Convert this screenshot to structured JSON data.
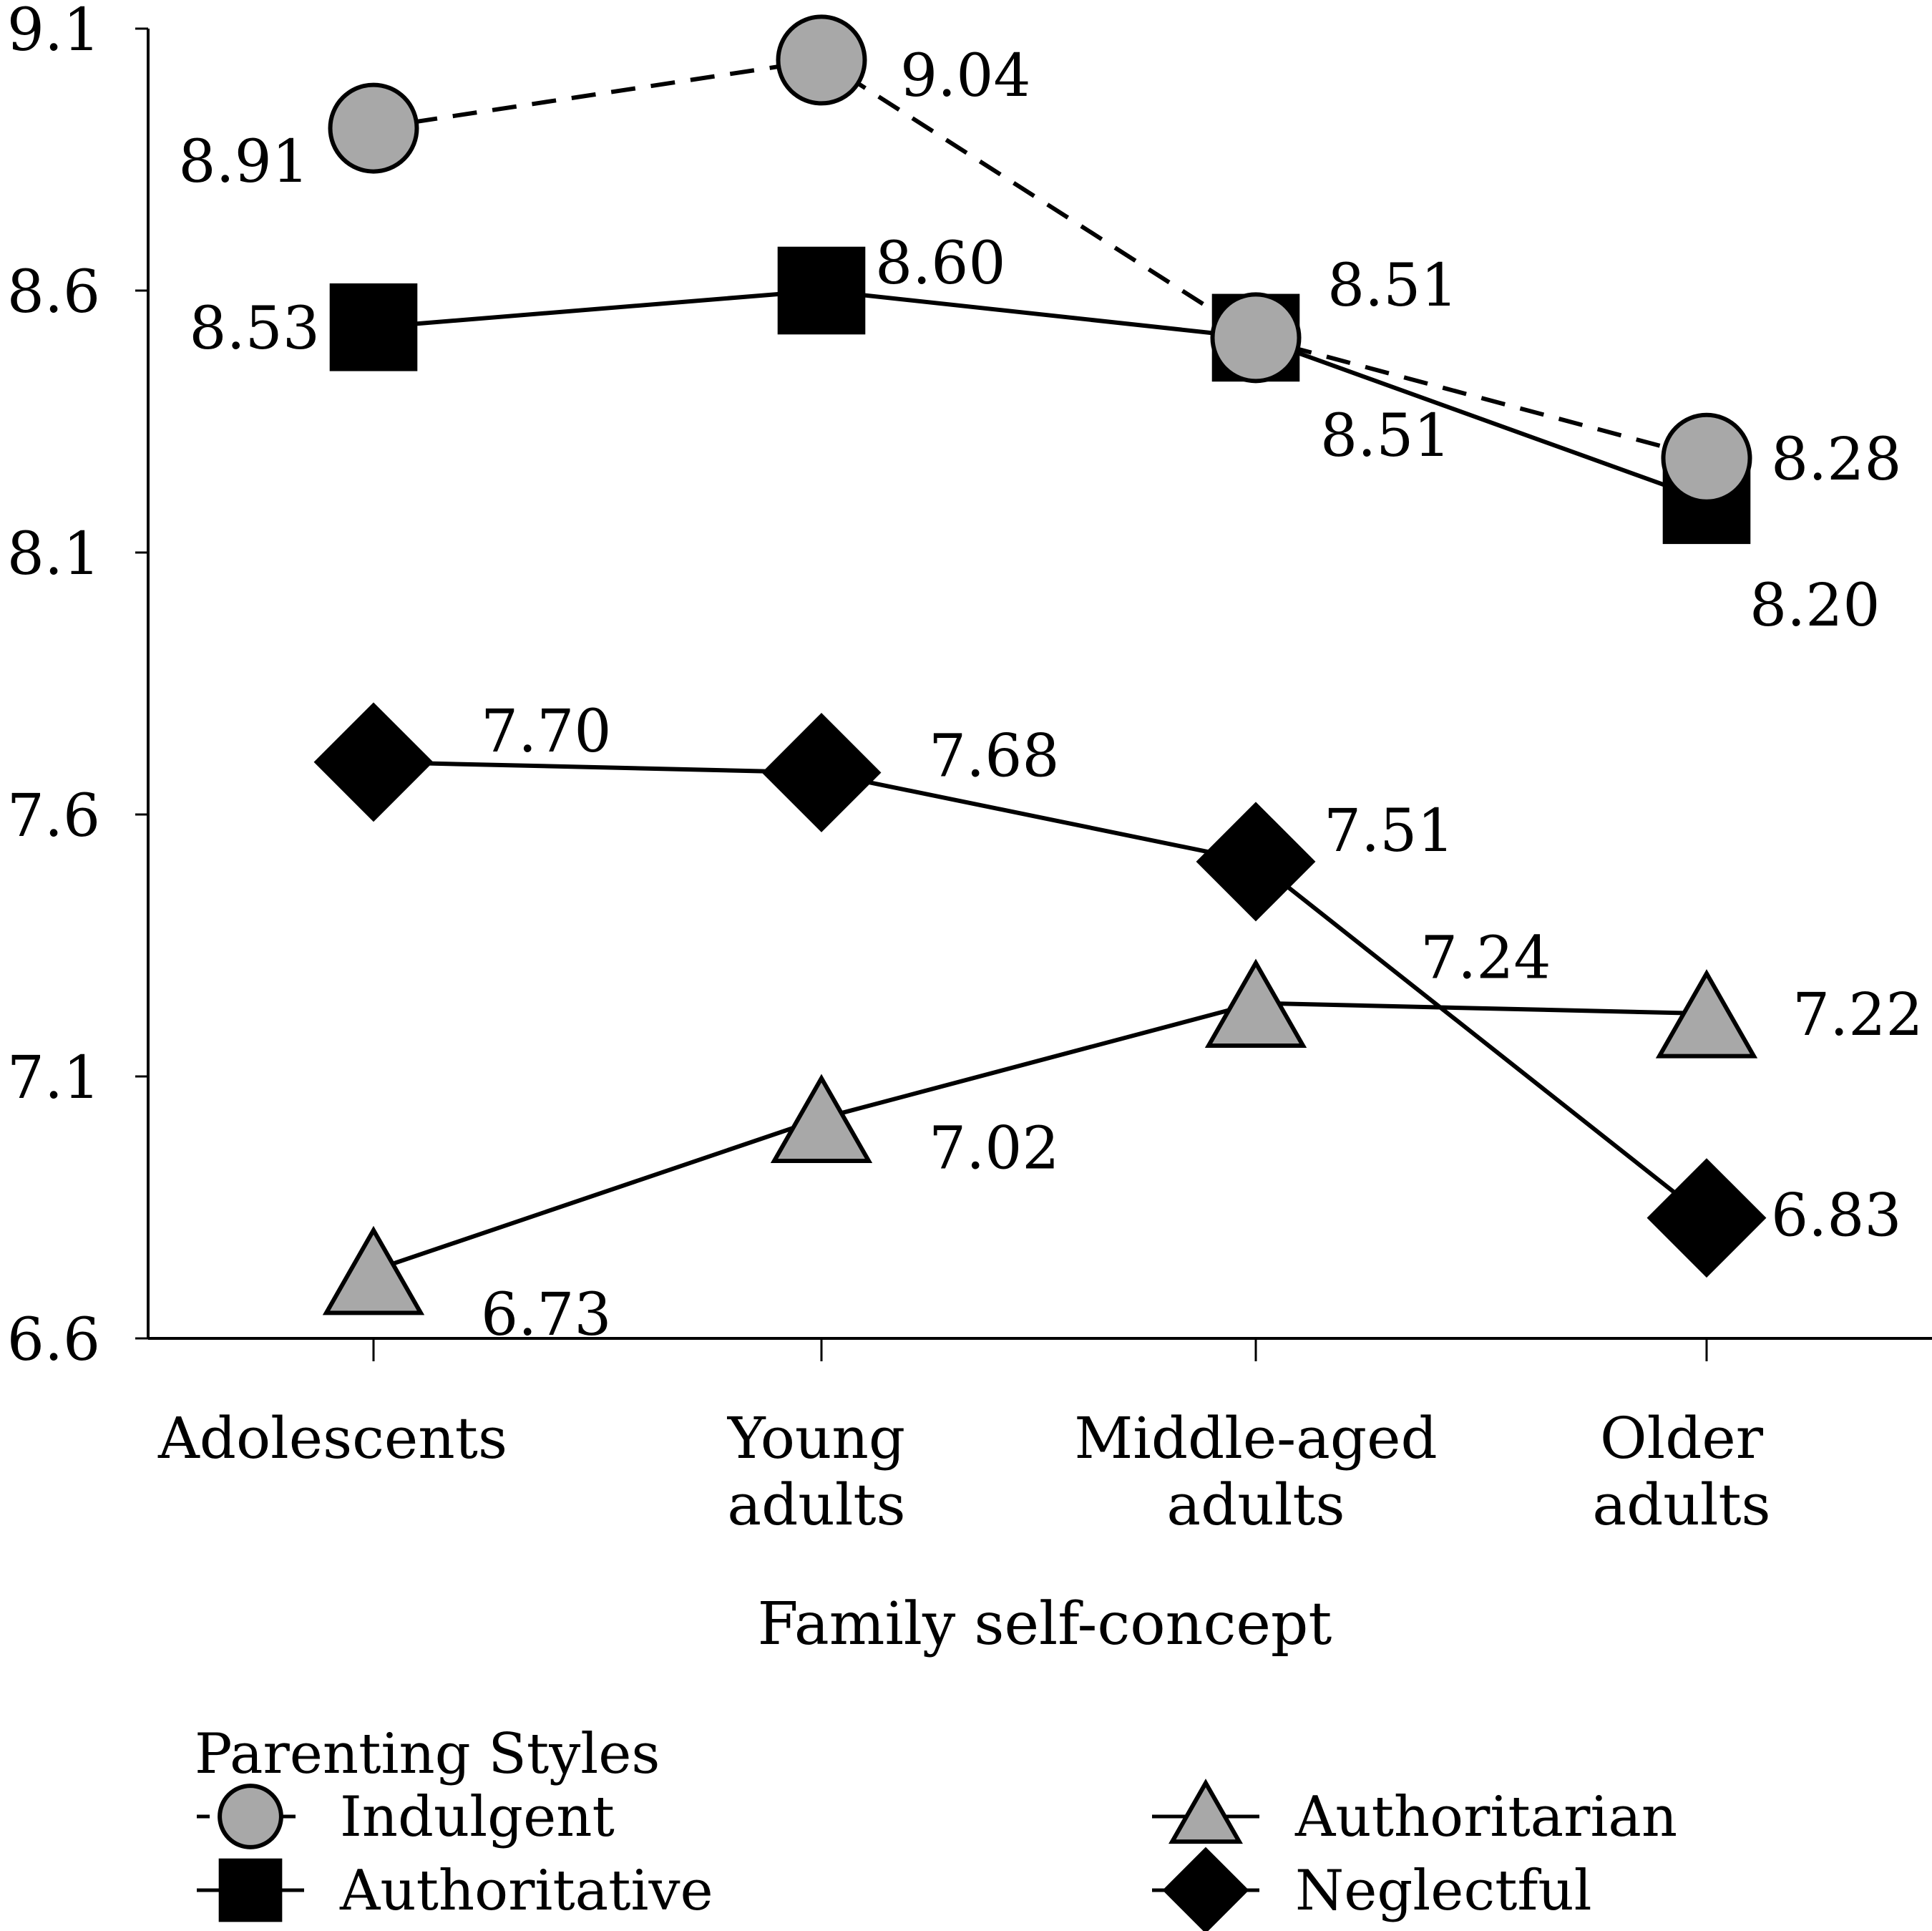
{
  "chart_data": {
    "type": "line",
    "xlabel": "Family self-concept",
    "ylabel": "",
    "ylim": [
      6.6,
      9.1
    ],
    "yticks": [
      "9.1",
      "8.6",
      "8.1",
      "7.6",
      "7.1",
      "6.6"
    ],
    "categories": [
      [
        "Adolescents"
      ],
      [
        "Young",
        "adults"
      ],
      [
        "Middle-aged",
        "adults"
      ],
      [
        "Older",
        "adults"
      ]
    ],
    "legend": {
      "title": "Parenting Styles",
      "placement": "bottom"
    },
    "series": [
      {
        "name": "Indulgent",
        "marker": "circle",
        "line": "dashed",
        "fill": "#a8a8a8",
        "values": [
          8.91,
          9.04,
          8.51,
          8.28
        ],
        "labels": [
          "8.91",
          "9.04",
          "8.51",
          "8.28"
        ]
      },
      {
        "name": "Authoritative",
        "marker": "square",
        "line": "solid",
        "fill": "#000000",
        "values": [
          8.53,
          8.6,
          8.51,
          8.2
        ],
        "labels": [
          "8.53",
          "8.60",
          "8.51",
          "8.20"
        ]
      },
      {
        "name": "Authoritarian",
        "marker": "triangle",
        "line": "solid",
        "fill": "#a8a8a8",
        "values": [
          6.73,
          7.02,
          7.24,
          7.22
        ],
        "labels": [
          "6.73",
          "7.02",
          "7.24",
          "7.22"
        ]
      },
      {
        "name": "Neglectful",
        "marker": "diamond",
        "line": "solid",
        "fill": "#000000",
        "values": [
          7.7,
          7.68,
          7.51,
          6.83
        ],
        "labels": [
          "7.70",
          "7.68",
          "7.51",
          "6.83"
        ]
      }
    ]
  }
}
